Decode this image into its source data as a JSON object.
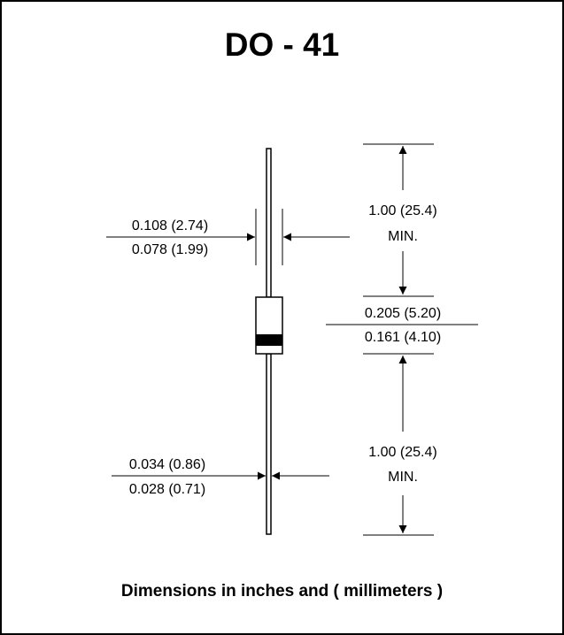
{
  "title": "DO - 41",
  "caption": "Dimensions in inches and ( millimeters )",
  "dimensions": {
    "body_diameter": {
      "max": "0.108 (2.74)",
      "min": "0.078 (1.99)"
    },
    "lead_diameter": {
      "max": "0.034 (0.86)",
      "min": "0.028 (0.71)"
    },
    "body_length": {
      "max": "0.205 (5.20)",
      "min": "0.161 (4.10)"
    },
    "lead_length_top": {
      "value": "1.00 (25.4)",
      "qualifier": "MIN."
    },
    "lead_length_bottom": {
      "value": "1.00 (25.4)",
      "qualifier": "MIN."
    }
  }
}
